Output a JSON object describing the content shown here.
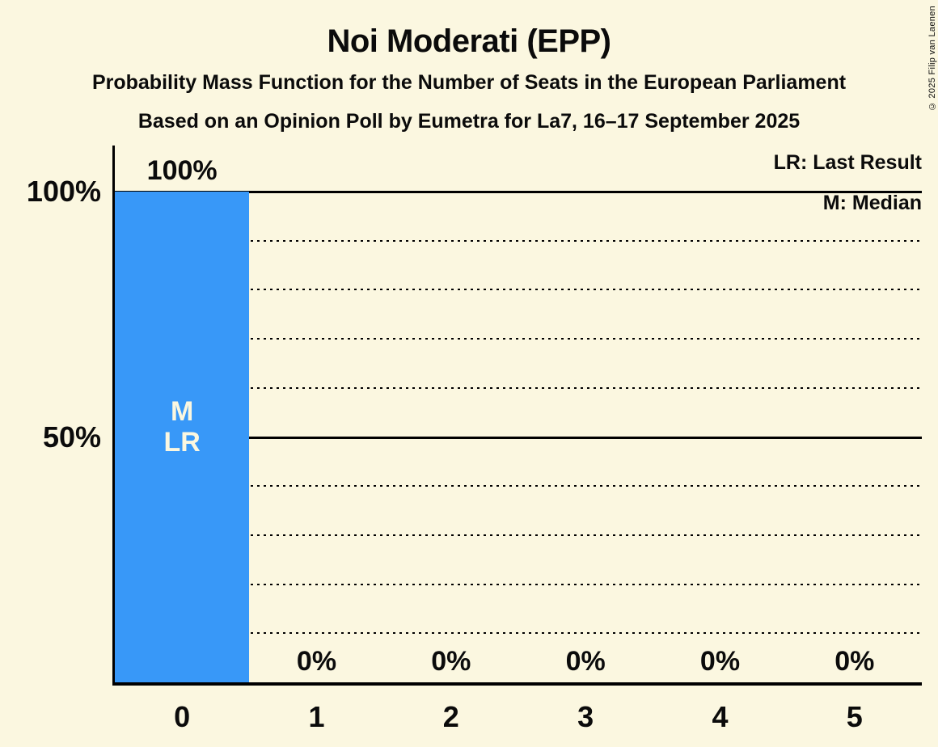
{
  "title": "Noi Moderati (EPP)",
  "subtitle1": "Probability Mass Function for the Number of Seats in the European Parliament",
  "subtitle2": "Based on an Opinion Poll by Eumetra for La7, 16–17 September 2025",
  "legend": {
    "lr": "LR: Last Result",
    "m": "M: Median"
  },
  "copyright": "© 2025 Filip van Laenen",
  "colors": {
    "background": "#fbf7e0",
    "bar": "#3898f8",
    "text": "#0b0b0b",
    "bar_annotation_text": "#fbf7e0",
    "gridline": "#000000"
  },
  "chart_data": {
    "type": "bar",
    "title": "Noi Moderati (EPP)",
    "categories": [
      "0",
      "1",
      "2",
      "3",
      "4",
      "5"
    ],
    "values": [
      100,
      0,
      0,
      0,
      0,
      0
    ],
    "value_labels": [
      "100%",
      "0%",
      "0%",
      "0%",
      "0%",
      "0%"
    ],
    "y_tick_labels": [
      "100%",
      "50%"
    ],
    "y_tick_pcts": [
      100,
      50
    ],
    "ylim": [
      0,
      100
    ],
    "grid": true,
    "solid_gridlines_pct": [
      100,
      50
    ],
    "dotted_gridlines_pct": [
      90,
      80,
      70,
      60,
      40,
      30,
      20,
      10
    ],
    "bar_annotations": {
      "0": [
        "M",
        "LR"
      ]
    },
    "legend_position": "top-right",
    "annotation_key": {
      "LR": "Last Result",
      "M": "Median"
    }
  }
}
